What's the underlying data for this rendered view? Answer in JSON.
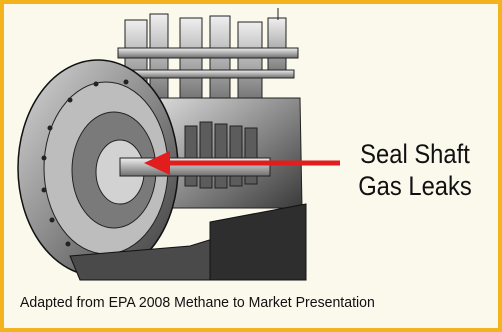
{
  "callout": {
    "line1": "Seal Shaft",
    "line2": "Gas Leaks"
  },
  "caption": "Adapted from EPA 2008 Methane to Market Presentation",
  "colors": {
    "frame_border": "#f2b31e",
    "background": "#fbf8ec",
    "arrow": "#e11d1d"
  },
  "icons": {
    "figure": "compressor-cutaway-illustration",
    "pointer": "arrow-left-icon"
  }
}
